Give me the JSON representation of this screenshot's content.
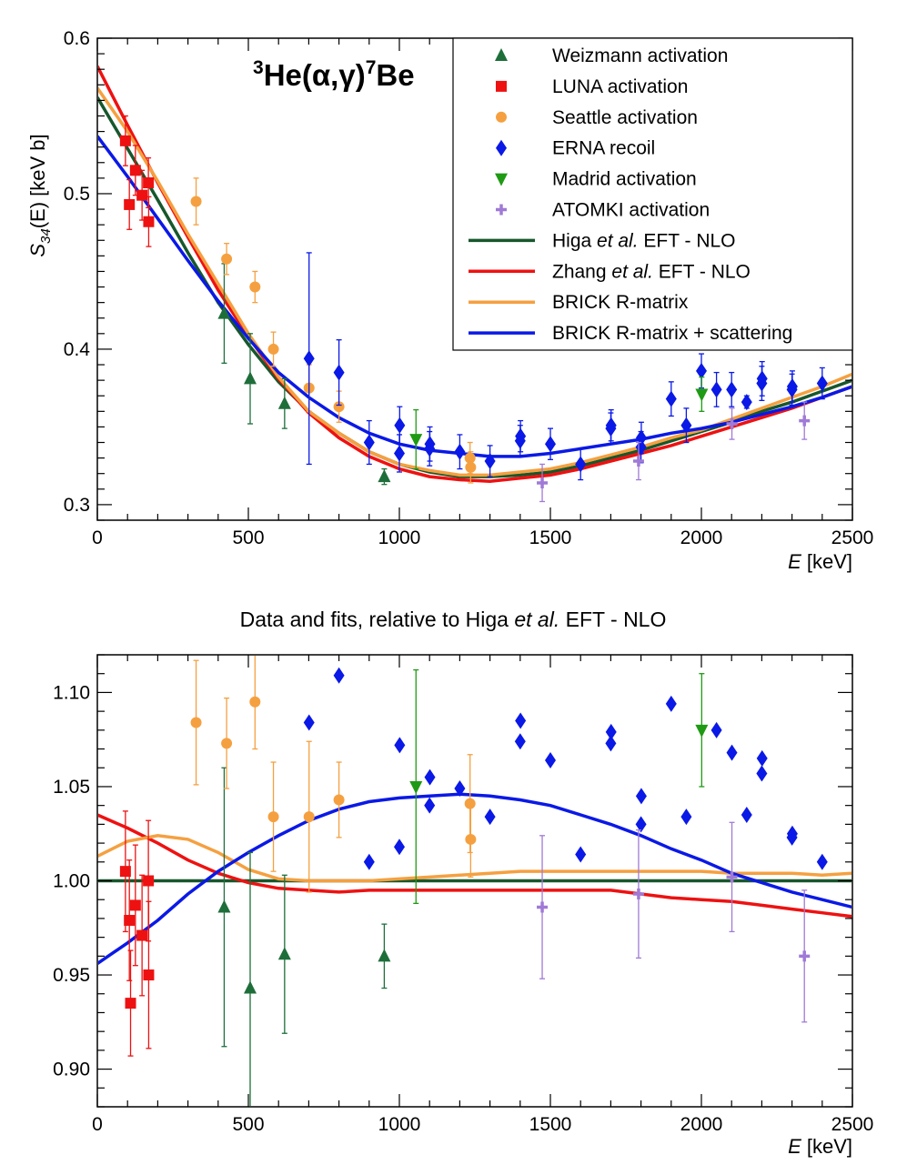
{
  "figure": {
    "reaction_pre": "3",
    "reaction_mid": "He(",
    "reaction_alpha": "α",
    "reaction_comma": ",",
    "reaction_gamma": "γ",
    "reaction_close": ")",
    "reaction_sup": "7",
    "reaction_post": "Be",
    "xlabel_var": "E",
    "xlabel_unit": " [keV]",
    "ylabel_main": "S",
    "ylabel_sub": "34",
    "ylabel_rest": "(E) [keV b]",
    "bottom_title_pre": "Data and fits, relative to Higa ",
    "bottom_title_it": "et al.",
    "bottom_title_post": " EFT - NLO"
  },
  "legend": [
    {
      "key": "weizmann",
      "marker": "triangle-up",
      "label": "Weizmann activation"
    },
    {
      "key": "luna",
      "marker": "square",
      "label": "LUNA activation"
    },
    {
      "key": "seattle",
      "marker": "circle",
      "label": "Seattle activation"
    },
    {
      "key": "erna",
      "marker": "diamond",
      "label": "ERNA recoil"
    },
    {
      "key": "madrid",
      "marker": "triangle-down",
      "label": "Madrid activation"
    },
    {
      "key": "atomki",
      "marker": "cross",
      "label": "ATOMKI activation"
    },
    {
      "key": "higa",
      "marker": "line",
      "pre": "Higa ",
      "it": "et al.",
      "post": " EFT - NLO"
    },
    {
      "key": "zhang",
      "marker": "line",
      "pre": "Zhang ",
      "it": "et al.",
      "post": " EFT - NLO"
    },
    {
      "key": "brick",
      "marker": "line",
      "label": "BRICK R-matrix"
    },
    {
      "key": "brick_scat",
      "marker": "line",
      "label": "BRICK R-matrix + scattering"
    }
  ],
  "colors": {
    "weizmann": "#1e6e3a",
    "luna": "#ee1111",
    "seattle": "#f5a040",
    "erna": "#0a19e6",
    "madrid": "#1f9a14",
    "atomki": "#a07ad6",
    "higa": "#17572c",
    "zhang": "#ee1111",
    "brick": "#f5a040",
    "brick_scat": "#0a19e6"
  },
  "chart_data": [
    {
      "type": "scatter",
      "panel": "top",
      "title": "3He(α,γ)7Be",
      "xlabel": "E [keV]",
      "ylabel": "S34(E) [keV b]",
      "xlim": [
        0,
        2500
      ],
      "ylim": [
        0.29,
        0.6
      ],
      "xticks": [
        0,
        500,
        1000,
        1500,
        2000,
        2500
      ],
      "yticks": [
        0.3,
        0.4,
        0.5,
        0.6
      ],
      "ytick_labels": [
        "0.3",
        "0.4",
        "0.5",
        "0.6"
      ],
      "series": [
        {
          "name": "Weizmann activation",
          "key": "weizmann",
          "marker": "triangle-up",
          "x": [
            420,
            506,
            620,
            950
          ],
          "y": [
            0.423,
            0.381,
            0.365,
            0.318
          ],
          "err": [
            0.032,
            0.029,
            0.016,
            0.005
          ]
        },
        {
          "name": "LUNA activation",
          "key": "luna",
          "marker": "square",
          "x": [
            93,
            106,
            126,
            148,
            169,
            170
          ],
          "y": [
            0.534,
            0.493,
            0.515,
            0.499,
            0.507,
            0.482
          ],
          "err": [
            0.016,
            0.016,
            0.016,
            0.016,
            0.016,
            0.016
          ]
        },
        {
          "name": "Seattle activation",
          "key": "seattle",
          "marker": "circle",
          "x": [
            327,
            428,
            522,
            583,
            701,
            800,
            1234,
            1236
          ],
          "y": [
            0.495,
            0.458,
            0.44,
            0.4,
            0.375,
            0.363,
            0.33,
            0.324
          ],
          "err": [
            0.015,
            0.01,
            0.01,
            0.011,
            0.015,
            0.01,
            0.01,
            0.01
          ]
        },
        {
          "name": "ERNA recoil",
          "key": "erna",
          "marker": "diamond",
          "x": [
            701,
            800,
            900,
            1000,
            1001,
            1100,
            1101,
            1200,
            1300,
            1400,
            1401,
            1500,
            1600,
            1700,
            1701,
            1800,
            1801,
            1900,
            1950,
            2000,
            2050,
            2100,
            2150,
            2200,
            2201,
            2300,
            2301,
            2400
          ],
          "y": [
            0.394,
            0.385,
            0.34,
            0.333,
            0.351,
            0.336,
            0.339,
            0.334,
            0.328,
            0.341,
            0.344,
            0.339,
            0.326,
            0.349,
            0.351,
            0.337,
            0.343,
            0.368,
            0.351,
            0.386,
            0.374,
            0.374,
            0.366,
            0.378,
            0.381,
            0.374,
            0.376,
            0.378
          ],
          "err": [
            0.068,
            0.021,
            0.014,
            0.012,
            0.012,
            0.011,
            0.011,
            0.011,
            0.01,
            0.01,
            0.01,
            0.01,
            0.01,
            0.01,
            0.01,
            0.01,
            0.01,
            0.011,
            0.011,
            0.011,
            0.011,
            0.011,
            0.004,
            0.011,
            0.011,
            0.01,
            0.01,
            0.01
          ]
        },
        {
          "name": "Madrid activation",
          "key": "madrid",
          "marker": "triangle-down",
          "x": [
            1055,
            2001
          ],
          "y": [
            0.342,
            0.371
          ],
          "err": [
            0.019,
            0.011
          ]
        },
        {
          "name": "ATOMKI activation",
          "key": "atomki",
          "marker": "cross",
          "x": [
            1473,
            1792,
            2101,
            2341
          ],
          "y": [
            0.314,
            0.328,
            0.352,
            0.354
          ],
          "err": [
            0.012,
            0.012,
            0.01,
            0.012
          ]
        },
        {
          "name": "Higa et al. EFT - NLO",
          "key": "higa",
          "marker": "line",
          "x": [
            0,
            100,
            200,
            300,
            400,
            500,
            600,
            700,
            800,
            900,
            1000,
            1100,
            1200,
            1300,
            1400,
            1500,
            1600,
            1700,
            1800,
            1900,
            2000,
            2100,
            2200,
            2300,
            2400,
            2500
          ],
          "y": [
            0.562,
            0.529,
            0.496,
            0.462,
            0.43,
            0.403,
            0.379,
            0.36,
            0.346,
            0.334,
            0.326,
            0.321,
            0.318,
            0.318,
            0.319,
            0.321,
            0.325,
            0.33,
            0.335,
            0.341,
            0.347,
            0.353,
            0.36,
            0.366,
            0.373,
            0.38
          ]
        },
        {
          "name": "Zhang et al. EFT - NLO",
          "key": "zhang",
          "marker": "line",
          "x": [
            0,
            100,
            200,
            300,
            400,
            500,
            600,
            700,
            800,
            900,
            1000,
            1100,
            1200,
            1300,
            1400,
            1500,
            1600,
            1700,
            1800,
            1900,
            2000,
            2100,
            2200,
            2300,
            2400,
            2500
          ],
          "y": [
            0.582,
            0.544,
            0.507,
            0.472,
            0.438,
            0.408,
            0.381,
            0.359,
            0.343,
            0.331,
            0.323,
            0.318,
            0.316,
            0.315,
            0.317,
            0.319,
            0.323,
            0.328,
            0.333,
            0.338,
            0.344,
            0.35,
            0.356,
            0.362,
            0.369,
            0.376
          ]
        },
        {
          "name": "BRICK R-matrix",
          "key": "brick",
          "marker": "line",
          "x": [
            0,
            100,
            200,
            300,
            400,
            500,
            600,
            700,
            800,
            900,
            1000,
            1100,
            1200,
            1300,
            1400,
            1500,
            1600,
            1700,
            1800,
            1900,
            2000,
            2100,
            2200,
            2300,
            2400,
            2500
          ],
          "y": [
            0.568,
            0.54,
            0.508,
            0.474,
            0.442,
            0.41,
            0.382,
            0.36,
            0.346,
            0.334,
            0.326,
            0.322,
            0.319,
            0.319,
            0.321,
            0.323,
            0.327,
            0.332,
            0.337,
            0.343,
            0.348,
            0.355,
            0.362,
            0.369,
            0.376,
            0.384
          ]
        },
        {
          "name": "BRICK R-matrix + scattering",
          "key": "brick_scat",
          "marker": "line",
          "x": [
            0,
            100,
            200,
            300,
            400,
            500,
            600,
            700,
            800,
            900,
            1000,
            1100,
            1200,
            1300,
            1400,
            1500,
            1600,
            1700,
            1800,
            1900,
            2000,
            2100,
            2200,
            2300,
            2400,
            2500
          ],
          "y": [
            0.537,
            0.511,
            0.484,
            0.457,
            0.431,
            0.407,
            0.385,
            0.369,
            0.356,
            0.346,
            0.339,
            0.335,
            0.333,
            0.331,
            0.331,
            0.333,
            0.336,
            0.339,
            0.342,
            0.346,
            0.349,
            0.353,
            0.358,
            0.363,
            0.369,
            0.376
          ]
        }
      ]
    },
    {
      "type": "scatter",
      "panel": "bottom",
      "title": "Data and fits, relative to Higa et al. EFT - NLO",
      "xlabel": "E [keV]",
      "ylabel": "",
      "xlim": [
        0,
        2500
      ],
      "ylim": [
        0.88,
        1.12
      ],
      "xticks": [
        0,
        500,
        1000,
        1500,
        2000,
        2500
      ],
      "yticks": [
        0.9,
        0.95,
        1.0,
        1.05,
        1.1
      ],
      "ytick_labels": [
        "0.90",
        "0.95",
        "1.00",
        "1.05",
        "1.10"
      ],
      "series": [
        {
          "name": "Weizmann activation",
          "key": "weizmann",
          "marker": "triangle-up",
          "x": [
            420,
            506,
            620,
            950
          ],
          "y": [
            0.986,
            0.943,
            0.961,
            0.96
          ],
          "err": [
            0.074,
            0.072,
            0.042,
            0.017
          ]
        },
        {
          "name": "LUNA activation",
          "key": "luna",
          "marker": "square",
          "x": [
            93,
            106,
            110,
            126,
            148,
            169,
            170
          ],
          "y": [
            1.005,
            0.979,
            0.935,
            0.987,
            0.971,
            1.0,
            0.95
          ],
          "err": [
            0.032,
            0.032,
            0.028,
            0.032,
            0.032,
            0.032,
            0.039
          ]
        },
        {
          "name": "Seattle activation",
          "key": "seattle",
          "marker": "circle",
          "x": [
            327,
            428,
            522,
            583,
            701,
            800,
            1234,
            1236
          ],
          "y": [
            1.084,
            1.073,
            1.095,
            1.034,
            1.034,
            1.043,
            1.041,
            1.022
          ],
          "err": [
            0.033,
            0.024,
            0.025,
            0.029,
            0.04,
            0.02,
            0.026,
            0.02
          ]
        },
        {
          "name": "ERNA recoil",
          "key": "erna",
          "marker": "diamond",
          "x": [
            701,
            800,
            900,
            1000,
            1001,
            1100,
            1101,
            1200,
            1300,
            1400,
            1401,
            1500,
            1600,
            1700,
            1701,
            1800,
            1801,
            1900,
            1950,
            2050,
            2101,
            2150,
            2200,
            2201,
            2300,
            2301,
            2400
          ],
          "y": [
            1.084,
            1.109,
            1.01,
            1.018,
            1.072,
            1.04,
            1.055,
            1.049,
            1.034,
            1.074,
            1.085,
            1.064,
            1.014,
            1.073,
            1.079,
            1.03,
            1.045,
            1.094,
            1.034,
            1.08,
            1.068,
            1.035,
            1.057,
            1.065,
            1.023,
            1.025,
            1.01
          ]
        },
        {
          "name": "Madrid activation",
          "key": "madrid",
          "marker": "triangle-down",
          "x": [
            1055,
            2001
          ],
          "y": [
            1.05,
            1.08
          ],
          "err": [
            0.062,
            0.03
          ]
        },
        {
          "name": "ATOMKI activation",
          "key": "atomki",
          "marker": "cross",
          "x": [
            1473,
            1792,
            2101,
            2341
          ],
          "y": [
            0.986,
            0.993,
            1.002,
            0.96
          ],
          "err": [
            0.038,
            0.034,
            0.029,
            0.035
          ]
        },
        {
          "name": "Higa et al. EFT - NLO",
          "key": "higa",
          "marker": "line",
          "x": [
            0,
            2500
          ],
          "y": [
            1.0,
            1.0
          ]
        },
        {
          "name": "Zhang et al. EFT - NLO",
          "key": "zhang",
          "marker": "line",
          "x": [
            0,
            100,
            200,
            300,
            400,
            500,
            600,
            700,
            800,
            900,
            1000,
            1100,
            1200,
            1300,
            1400,
            1500,
            1600,
            1700,
            1800,
            1900,
            2000,
            2100,
            2200,
            2300,
            2400,
            2500
          ],
          "y": [
            1.035,
            1.028,
            1.02,
            1.011,
            1.004,
            0.999,
            0.996,
            0.995,
            0.994,
            0.995,
            0.995,
            0.995,
            0.995,
            0.995,
            0.995,
            0.995,
            0.995,
            0.995,
            0.993,
            0.991,
            0.99,
            0.989,
            0.987,
            0.985,
            0.983,
            0.981
          ]
        },
        {
          "name": "BRICK R-matrix",
          "key": "brick",
          "marker": "line",
          "x": [
            0,
            100,
            200,
            300,
            400,
            500,
            600,
            700,
            800,
            900,
            1000,
            1100,
            1200,
            1300,
            1400,
            1500,
            1600,
            1700,
            1800,
            1900,
            2000,
            2100,
            2200,
            2300,
            2400,
            2500
          ],
          "y": [
            1.013,
            1.021,
            1.024,
            1.022,
            1.015,
            1.006,
            1.001,
            1.0,
            1.0,
            1.0,
            1.001,
            1.002,
            1.003,
            1.004,
            1.005,
            1.005,
            1.005,
            1.005,
            1.005,
            1.005,
            1.005,
            1.004,
            1.004,
            1.004,
            1.003,
            1.004
          ]
        },
        {
          "name": "BRICK R-matrix + scattering",
          "key": "brick_scat",
          "marker": "line",
          "x": [
            0,
            100,
            200,
            300,
            400,
            500,
            600,
            700,
            800,
            900,
            1000,
            1100,
            1200,
            1300,
            1400,
            1500,
            1600,
            1700,
            1800,
            1900,
            2000,
            2100,
            2200,
            2300,
            2400,
            2500
          ],
          "y": [
            0.956,
            0.967,
            0.979,
            0.993,
            1.005,
            1.015,
            1.024,
            1.032,
            1.038,
            1.042,
            1.044,
            1.045,
            1.046,
            1.045,
            1.043,
            1.04,
            1.035,
            1.03,
            1.024,
            1.017,
            1.011,
            1.004,
            0.999,
            0.994,
            0.99,
            0.986
          ]
        }
      ]
    }
  ]
}
